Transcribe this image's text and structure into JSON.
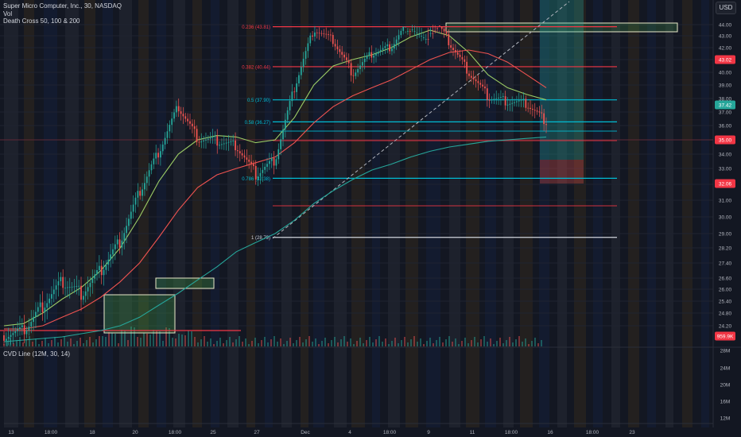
{
  "header": {
    "title": "Super Micro Computer, Inc., 30, NASDAQ",
    "volume_label": "Vol",
    "indicator_label": "Death Cross 50, 100 & 200",
    "currency_button": "USD"
  },
  "cvd_panel": {
    "label": "CVD Line (12M, 30, 14)",
    "ticks": [
      "28M",
      "24M",
      "20M",
      "16M",
      "12M"
    ]
  },
  "colors": {
    "background": "#131722",
    "fib_red": "#f23645",
    "fib_cyan": "#00bcd4",
    "fib_white": "#d1d4dc",
    "zone_green": "#4caf50",
    "ma_green": "#9ccc65",
    "ma_red": "#ef5350",
    "ma_dark": "#26a69a"
  },
  "chart_data": {
    "type": "candlestick",
    "symbol": "Super Micro Computer, Inc.",
    "interval": "30",
    "exchange": "NASDAQ",
    "x_ticks": [
      "13",
      "18:00",
      "18",
      "20",
      "18:00",
      "25",
      "27",
      "Dec",
      "4",
      "18:00",
      "9",
      "11",
      "18:00",
      "16",
      "18:00",
      "23"
    ],
    "y_ticks": [
      "44.00",
      "43.00",
      "42.00",
      "41.00",
      "40.00",
      "39.00",
      "38.00",
      "37.00",
      "36.00",
      "35.00",
      "34.00",
      "33.00",
      "32.00",
      "31.00",
      "30.00",
      "29.00",
      "28.20",
      "27.40",
      "26.60",
      "26.00",
      "25.40",
      "24.80",
      "24.20"
    ],
    "y_range": [
      23.5,
      45.5
    ],
    "fib_levels": [
      {
        "label": "0.236 (43.81)",
        "value": 43.81,
        "color": "red"
      },
      {
        "label": "0.382 (40.44)",
        "value": 40.44,
        "color": "red"
      },
      {
        "label": "0.5 (37.90)",
        "value": 37.9,
        "color": "cyan"
      },
      {
        "label": "0.58 (36.27)",
        "value": 36.27,
        "color": "cyan"
      },
      {
        "label": "0.786 (32.38)",
        "value": 32.38,
        "color": "cyan"
      },
      {
        "label": "1 (28.79)",
        "value": 28.79,
        "color": "white"
      }
    ],
    "price_badges": [
      "43.02",
      "37.42",
      "35.00",
      "32.06",
      "959.9K"
    ],
    "series": [
      {
        "name": "Price",
        "values": [
          23.6,
          23.9,
          25.2,
          26.4,
          25.8,
          27.0,
          28.6,
          31.5,
          34.2,
          37.4,
          35.1,
          34.9,
          34.6,
          32.6,
          33.6,
          38.8,
          43.6,
          42.6,
          39.9,
          41.5,
          42.1,
          44.6,
          45.1,
          42.4,
          40.0,
          38.1,
          37.8,
          37.6,
          36.3
        ]
      },
      {
        "name": "MA50",
        "values": [
          24.2,
          24.3,
          24.8,
          25.5,
          26.1,
          27.0,
          28.2,
          30.0,
          32.2,
          34.0,
          35.0,
          35.3,
          35.2,
          34.8,
          35.0,
          36.6,
          39.0,
          40.5,
          41.0,
          41.4,
          42.0,
          42.9,
          43.5,
          43.0,
          41.6,
          39.8,
          38.8,
          38.3,
          37.9
        ]
      },
      {
        "name": "MA100",
        "values": [
          24.0,
          24.0,
          24.2,
          24.6,
          25.0,
          25.6,
          26.4,
          27.4,
          28.8,
          30.4,
          31.8,
          32.6,
          33.0,
          33.4,
          33.8,
          34.8,
          36.2,
          37.4,
          38.2,
          38.8,
          39.4,
          40.2,
          41.0,
          41.6,
          41.8,
          41.5,
          40.8,
          39.8,
          38.8
        ]
      },
      {
        "name": "MA200",
        "values": [
          23.2,
          23.3,
          23.4,
          23.5,
          23.7,
          23.9,
          24.2,
          24.6,
          25.2,
          25.8,
          26.5,
          27.2,
          28.0,
          28.5,
          29.0,
          29.8,
          30.8,
          31.6,
          32.3,
          32.9,
          33.3,
          33.8,
          34.2,
          34.5,
          34.7,
          34.9,
          35.0,
          35.1,
          35.2
        ]
      }
    ]
  }
}
